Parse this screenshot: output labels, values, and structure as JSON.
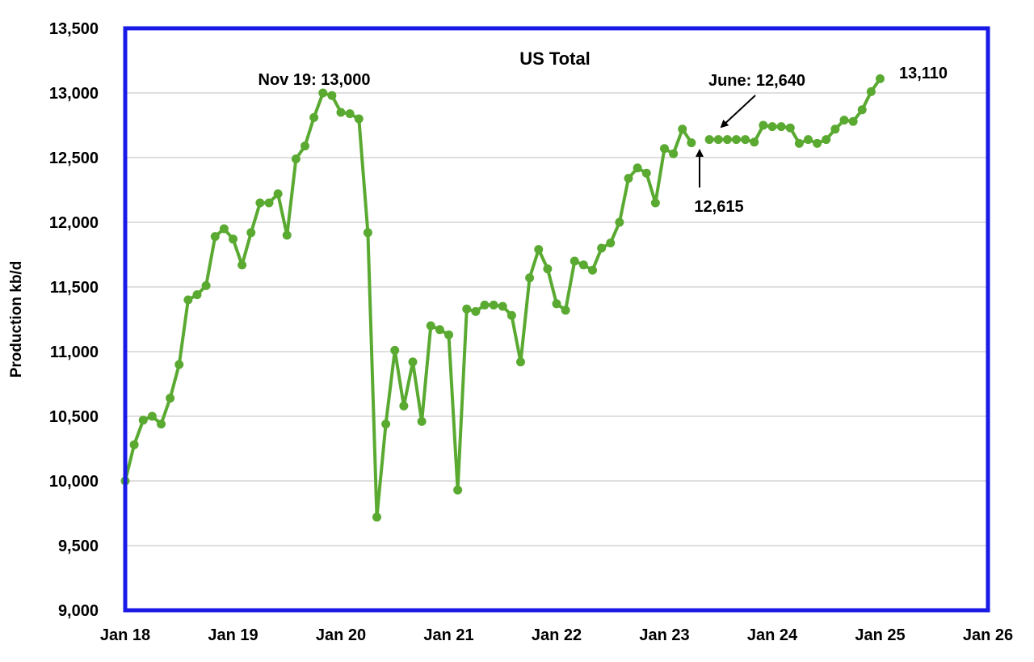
{
  "chart_data": {
    "type": "line",
    "title": "US Total",
    "xlabel": "",
    "ylabel": "Production kb/d",
    "ylim": [
      9000,
      13500
    ],
    "yticks": [
      9000,
      9500,
      10000,
      10500,
      11000,
      11500,
      12000,
      12500,
      13000,
      13500
    ],
    "ytick_labels": [
      "9,000",
      "9,500",
      "10,000",
      "10,500",
      "11,000",
      "11,500",
      "12,000",
      "12,500",
      "13,000",
      "13,500"
    ],
    "xlim": [
      "2018-01",
      "2026-01"
    ],
    "xtick_labels": [
      "Jan 18",
      "Jan 19",
      "Jan 20",
      "Jan 21",
      "Jan 22",
      "Jan 23",
      "Jan 24",
      "Jan 25",
      "Jan 26"
    ],
    "grid": "horizontal",
    "colors": {
      "line": "#5aaa32",
      "frame": "#1a1ae6",
      "grid": "#bfbfbf",
      "annotation": "#000000"
    },
    "series": [
      {
        "segment": "history",
        "points": [
          [
            "2018-01",
            10000
          ],
          [
            "2018-02",
            10280
          ],
          [
            "2018-03",
            10470
          ],
          [
            "2018-04",
            10500
          ],
          [
            "2018-05",
            10440
          ],
          [
            "2018-06",
            10640
          ],
          [
            "2018-07",
            10900
          ],
          [
            "2018-08",
            11400
          ],
          [
            "2018-09",
            11440
          ],
          [
            "2018-10",
            11510
          ],
          [
            "2018-11",
            11890
          ],
          [
            "2018-12",
            11950
          ],
          [
            "2019-01",
            11870
          ],
          [
            "2019-02",
            11670
          ],
          [
            "2019-03",
            11920
          ],
          [
            "2019-04",
            12150
          ],
          [
            "2019-05",
            12150
          ],
          [
            "2019-06",
            12220
          ],
          [
            "2019-07",
            11900
          ],
          [
            "2019-08",
            12490
          ],
          [
            "2019-09",
            12590
          ],
          [
            "2019-10",
            12810
          ],
          [
            "2019-11",
            13000
          ],
          [
            "2019-12",
            12980
          ],
          [
            "2020-01",
            12850
          ],
          [
            "2020-02",
            12840
          ],
          [
            "2020-03",
            12800
          ],
          [
            "2020-04",
            11920
          ],
          [
            "2020-05",
            9720
          ],
          [
            "2020-06",
            10440
          ],
          [
            "2020-07",
            11010
          ],
          [
            "2020-08",
            10580
          ],
          [
            "2020-09",
            10920
          ],
          [
            "2020-10",
            10460
          ],
          [
            "2020-11",
            11200
          ],
          [
            "2020-12",
            11170
          ],
          [
            "2021-01",
            11130
          ],
          [
            "2021-02",
            9930
          ],
          [
            "2021-03",
            11330
          ],
          [
            "2021-04",
            11310
          ],
          [
            "2021-05",
            11360
          ],
          [
            "2021-06",
            11360
          ],
          [
            "2021-07",
            11350
          ],
          [
            "2021-08",
            11280
          ],
          [
            "2021-09",
            10920
          ],
          [
            "2021-10",
            11570
          ],
          [
            "2021-11",
            11790
          ],
          [
            "2021-12",
            11640
          ],
          [
            "2022-01",
            11370
          ],
          [
            "2022-02",
            11320
          ],
          [
            "2022-03",
            11700
          ],
          [
            "2022-04",
            11670
          ],
          [
            "2022-05",
            11630
          ],
          [
            "2022-06",
            11800
          ],
          [
            "2022-07",
            11840
          ],
          [
            "2022-08",
            12000
          ],
          [
            "2022-09",
            12340
          ],
          [
            "2022-10",
            12420
          ],
          [
            "2022-11",
            12380
          ],
          [
            "2022-12",
            12150
          ],
          [
            "2023-01",
            12570
          ],
          [
            "2023-02",
            12530
          ],
          [
            "2023-03",
            12720
          ],
          [
            "2023-04",
            12615
          ]
        ]
      },
      {
        "segment": "forecast",
        "points": [
          [
            "2023-06",
            12640
          ],
          [
            "2023-07",
            12640
          ],
          [
            "2023-08",
            12640
          ],
          [
            "2023-09",
            12640
          ],
          [
            "2023-10",
            12640
          ],
          [
            "2023-11",
            12620
          ],
          [
            "2023-12",
            12750
          ],
          [
            "2024-01",
            12740
          ],
          [
            "2024-02",
            12740
          ],
          [
            "2024-03",
            12730
          ],
          [
            "2024-04",
            12610
          ],
          [
            "2024-05",
            12640
          ],
          [
            "2024-06",
            12610
          ],
          [
            "2024-07",
            12640
          ],
          [
            "2024-08",
            12720
          ],
          [
            "2024-09",
            12790
          ],
          [
            "2024-10",
            12780
          ],
          [
            "2024-11",
            12870
          ],
          [
            "2024-12",
            13010
          ],
          [
            "2025-01",
            13110
          ]
        ]
      }
    ],
    "annotations": [
      {
        "text": "Nov 19: 13,000",
        "date": "2019-11",
        "value": 13000,
        "arrow": false
      },
      {
        "text": "June: 12,640",
        "date": "2023-06",
        "value": 12640,
        "arrow": true
      },
      {
        "text": "12,615",
        "date": "2023-04",
        "value": 12615,
        "arrow": true
      },
      {
        "text": "13,110",
        "date": "2025-01",
        "value": 13110,
        "arrow": false
      }
    ]
  }
}
